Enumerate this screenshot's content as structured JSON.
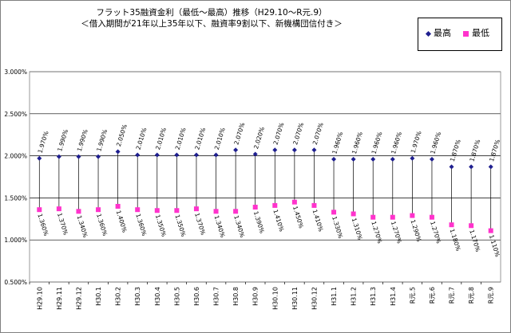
{
  "chart_data": {
    "type": "line",
    "title": "フラット35融資金利（最低～最高）推移（H29.10～R元.9）",
    "subtitle": "＜借入期間が21年以上35年以下、融資率9割以下、新機構団信付き＞",
    "ylim": [
      0.5,
      3.0
    ],
    "yticks": [
      "0.500%",
      "1.000%",
      "1.500%",
      "2.000%",
      "2.500%",
      "3.000%"
    ],
    "ytick_values": [
      0.5,
      1.0,
      1.5,
      2.0,
      2.5,
      3.0
    ],
    "grid": "horizontal",
    "legend_position": "top-right",
    "categories": [
      "H29.10",
      "H29.11",
      "H29.12",
      "H30.1",
      "H30.2",
      "H30.3",
      "H30.4",
      "H30.5",
      "H30.6",
      "H30.7",
      "H30.8",
      "H30.9",
      "H30.10",
      "H30.11",
      "H30.12",
      "H31.1",
      "H31.2",
      "H31.3",
      "H31.4",
      "R元.5",
      "R元.6",
      "R元.7",
      "R元.8",
      "R元.9"
    ],
    "series": [
      {
        "name": "最高",
        "color": "#1f1f8f",
        "marker": "diamond",
        "values": [
          1.97,
          1.99,
          1.99,
          1.99,
          2.05,
          2.01,
          2.01,
          2.01,
          2.01,
          2.01,
          2.07,
          2.02,
          2.07,
          2.07,
          2.07,
          1.96,
          1.96,
          1.96,
          1.96,
          1.97,
          1.96,
          1.87,
          1.87,
          1.87
        ],
        "labels": [
          "1.970%",
          "1.990%",
          "1.990%",
          "1.990%",
          "2.050%",
          "2.010%",
          "2.010%",
          "2.010%",
          "2.010%",
          "2.010%",
          "2.070%",
          "2.020%",
          "2.070%",
          "2.070%",
          "2.070%",
          "1.960%",
          "1.960%",
          "1.960%",
          "1.960%",
          "1.970%",
          "1.960%",
          "1.870%",
          "1.870%",
          "1.870%"
        ]
      },
      {
        "name": "最低",
        "color": "#ff33cc",
        "marker": "square",
        "values": [
          1.36,
          1.37,
          1.34,
          1.36,
          1.4,
          1.36,
          1.35,
          1.35,
          1.37,
          1.34,
          1.34,
          1.39,
          1.41,
          1.45,
          1.41,
          1.33,
          1.31,
          1.27,
          1.27,
          1.29,
          1.27,
          1.18,
          1.17,
          1.11
        ],
        "labels": [
          "1.360%",
          "1.370%",
          "1.340%",
          "1.360%",
          "1.400%",
          "1.360%",
          "1.350%",
          "1.350%",
          "1.370%",
          "1.340%",
          "1.340%",
          "1.390%",
          "1.410%",
          "1.450%",
          "1.410%",
          "1.330%",
          "1.310%",
          "1.270%",
          "1.270%",
          "1.290%",
          "1.270%",
          "1.180%",
          "1.170%",
          "1.110%"
        ]
      }
    ]
  }
}
